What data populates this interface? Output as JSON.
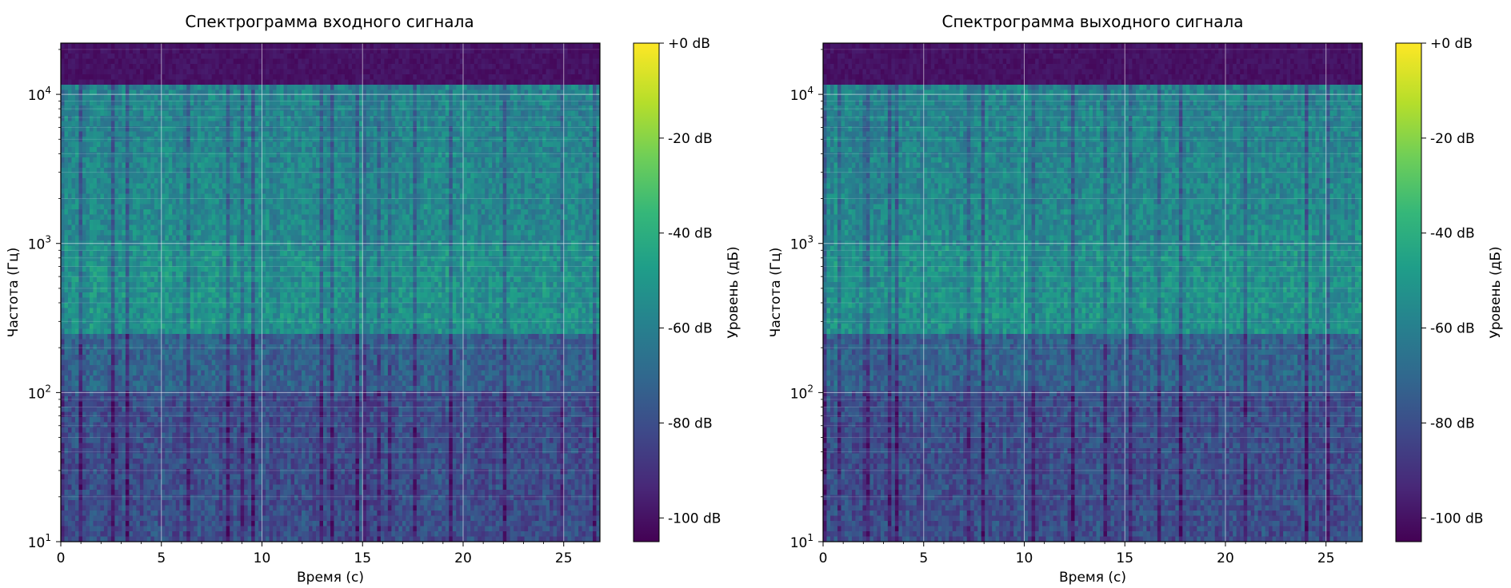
{
  "chart_data": [
    {
      "type": "heatmap",
      "title": "Спектрограмма входного сигнала",
      "xlabel": "Время (с)",
      "ylabel": "Частота (Гц)",
      "xlim": [
        0,
        26.8
      ],
      "ylim": [
        10,
        22050
      ],
      "y_scale": "log",
      "x_ticks": [
        "0",
        "5",
        "10",
        "15",
        "20",
        "25"
      ],
      "x_tick_values": [
        0,
        5,
        10,
        15,
        20,
        25
      ],
      "y_tick_values": [
        10,
        100,
        1000,
        10000
      ],
      "y_ticks": [
        {
          "base": "10",
          "exp": "1"
        },
        {
          "base": "10",
          "exp": "2"
        },
        {
          "base": "10",
          "exp": "3"
        },
        {
          "base": "10",
          "exp": "4"
        }
      ],
      "grid": true,
      "colormap": "viridis",
      "colorbar": {
        "label": "Уровень (дБ)",
        "range": [
          -105,
          0
        ],
        "tick_values": [
          0,
          -20,
          -40,
          -60,
          -80,
          -100
        ],
        "tick_labels": [
          "+0 dB",
          "-20 dB",
          "-40 dB",
          "-60 dB",
          "-80 dB",
          "-100 dB"
        ]
      }
    },
    {
      "type": "heatmap",
      "title": "Спектрограмма выходного сигнала",
      "xlabel": "Время (с)",
      "ylabel": "Частота (Гц)",
      "xlim": [
        0,
        26.8
      ],
      "ylim": [
        10,
        22050
      ],
      "y_scale": "log",
      "x_ticks": [
        "0",
        "5",
        "10",
        "15",
        "20",
        "25"
      ],
      "x_tick_values": [
        0,
        5,
        10,
        15,
        20,
        25
      ],
      "y_tick_values": [
        10,
        100,
        1000,
        10000
      ],
      "y_ticks": [
        {
          "base": "10",
          "exp": "1"
        },
        {
          "base": "10",
          "exp": "2"
        },
        {
          "base": "10",
          "exp": "3"
        },
        {
          "base": "10",
          "exp": "4"
        }
      ],
      "grid": true,
      "colormap": "viridis",
      "colorbar": {
        "label": "Уровень (дБ)",
        "range": [
          -105,
          0
        ],
        "tick_values": [
          0,
          -20,
          -40,
          -60,
          -80,
          -100
        ],
        "tick_labels": [
          "+0 dB",
          "-20 dB",
          "-40 dB",
          "-60 dB",
          "-80 dB",
          "-100 dB"
        ]
      }
    }
  ],
  "colors": {
    "viridis_stops": [
      "#440154",
      "#482878",
      "#3e4989",
      "#31688e",
      "#26828e",
      "#1f9e89",
      "#35b779",
      "#6ece58",
      "#b5de2b",
      "#fde725"
    ],
    "grid": "#ffffff"
  }
}
